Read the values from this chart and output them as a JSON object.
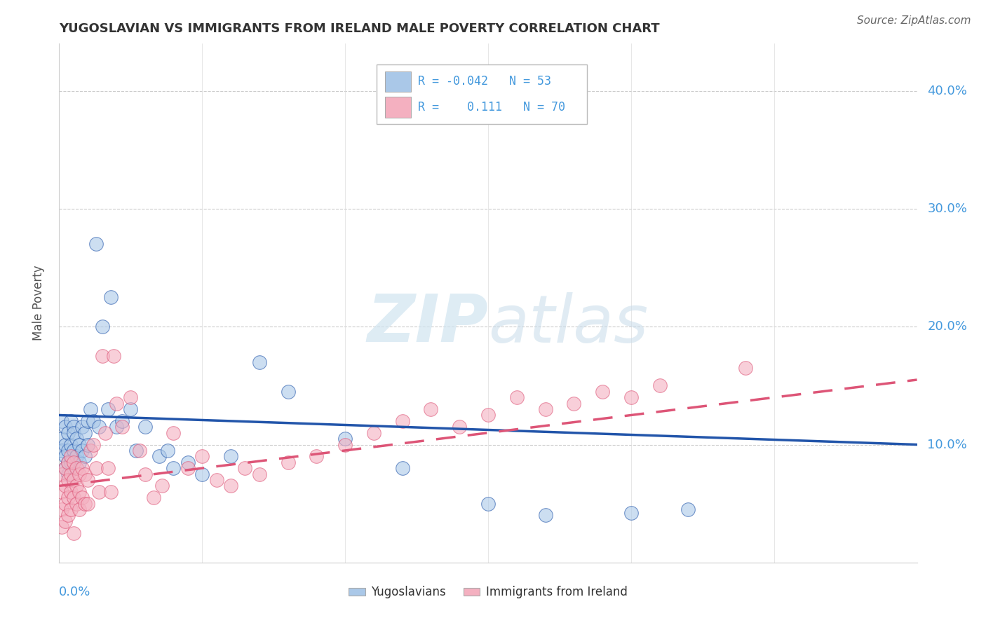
{
  "title": "YUGOSLAVIAN VS IMMIGRANTS FROM IRELAND MALE POVERTY CORRELATION CHART",
  "source": "Source: ZipAtlas.com",
  "ylabel": "Male Poverty",
  "xlim": [
    0.0,
    0.3
  ],
  "ylim": [
    0.0,
    0.44
  ],
  "legend_r_blue": "-0.042",
  "legend_n_blue": "53",
  "legend_r_pink": "0.111",
  "legend_n_pink": "70",
  "blue_color": "#aac8e8",
  "pink_color": "#f4b0c0",
  "blue_line_color": "#2255aa",
  "pink_line_color": "#dd5577",
  "axis_color": "#4499dd",
  "background_color": "#ffffff",
  "yugoslavian_x": [
    0.001,
    0.001,
    0.001,
    0.002,
    0.002,
    0.002,
    0.002,
    0.003,
    0.003,
    0.003,
    0.003,
    0.004,
    0.004,
    0.004,
    0.005,
    0.005,
    0.005,
    0.006,
    0.006,
    0.007,
    0.007,
    0.008,
    0.008,
    0.009,
    0.009,
    0.01,
    0.01,
    0.011,
    0.012,
    0.013,
    0.014,
    0.015,
    0.017,
    0.018,
    0.02,
    0.022,
    0.025,
    0.027,
    0.03,
    0.035,
    0.038,
    0.04,
    0.045,
    0.05,
    0.06,
    0.07,
    0.08,
    0.1,
    0.12,
    0.15,
    0.17,
    0.2,
    0.22
  ],
  "yugoslavian_y": [
    0.12,
    0.105,
    0.095,
    0.115,
    0.1,
    0.09,
    0.08,
    0.11,
    0.095,
    0.085,
    0.075,
    0.12,
    0.1,
    0.085,
    0.115,
    0.095,
    0.11,
    0.105,
    0.09,
    0.1,
    0.085,
    0.115,
    0.095,
    0.11,
    0.09,
    0.12,
    0.1,
    0.13,
    0.12,
    0.27,
    0.115,
    0.2,
    0.13,
    0.225,
    0.115,
    0.12,
    0.13,
    0.095,
    0.115,
    0.09,
    0.095,
    0.08,
    0.085,
    0.075,
    0.09,
    0.17,
    0.145,
    0.105,
    0.08,
    0.05,
    0.04,
    0.042,
    0.045
  ],
  "ireland_x": [
    0.001,
    0.001,
    0.001,
    0.001,
    0.002,
    0.002,
    0.002,
    0.002,
    0.003,
    0.003,
    0.003,
    0.003,
    0.004,
    0.004,
    0.004,
    0.004,
    0.005,
    0.005,
    0.005,
    0.005,
    0.006,
    0.006,
    0.006,
    0.007,
    0.007,
    0.007,
    0.008,
    0.008,
    0.009,
    0.009,
    0.01,
    0.01,
    0.011,
    0.012,
    0.013,
    0.014,
    0.015,
    0.016,
    0.017,
    0.018,
    0.019,
    0.02,
    0.022,
    0.025,
    0.028,
    0.03,
    0.033,
    0.036,
    0.04,
    0.045,
    0.05,
    0.055,
    0.06,
    0.065,
    0.07,
    0.08,
    0.09,
    0.1,
    0.11,
    0.12,
    0.13,
    0.14,
    0.15,
    0.16,
    0.17,
    0.18,
    0.19,
    0.2,
    0.21,
    0.24
  ],
  "ireland_y": [
    0.075,
    0.06,
    0.045,
    0.03,
    0.08,
    0.065,
    0.05,
    0.035,
    0.085,
    0.07,
    0.055,
    0.04,
    0.09,
    0.075,
    0.06,
    0.045,
    0.085,
    0.07,
    0.055,
    0.025,
    0.08,
    0.065,
    0.05,
    0.075,
    0.06,
    0.045,
    0.08,
    0.055,
    0.075,
    0.05,
    0.07,
    0.05,
    0.095,
    0.1,
    0.08,
    0.06,
    0.175,
    0.11,
    0.08,
    0.06,
    0.175,
    0.135,
    0.115,
    0.14,
    0.095,
    0.075,
    0.055,
    0.065,
    0.11,
    0.08,
    0.09,
    0.07,
    0.065,
    0.08,
    0.075,
    0.085,
    0.09,
    0.1,
    0.11,
    0.12,
    0.13,
    0.115,
    0.125,
    0.14,
    0.13,
    0.135,
    0.145,
    0.14,
    0.15,
    0.165
  ],
  "blue_line_x0": 0.0,
  "blue_line_x1": 0.3,
  "blue_line_y0": 0.125,
  "blue_line_y1": 0.1,
  "pink_line_x0": 0.0,
  "pink_line_x1": 0.3,
  "pink_line_y0": 0.065,
  "pink_line_y1": 0.155
}
